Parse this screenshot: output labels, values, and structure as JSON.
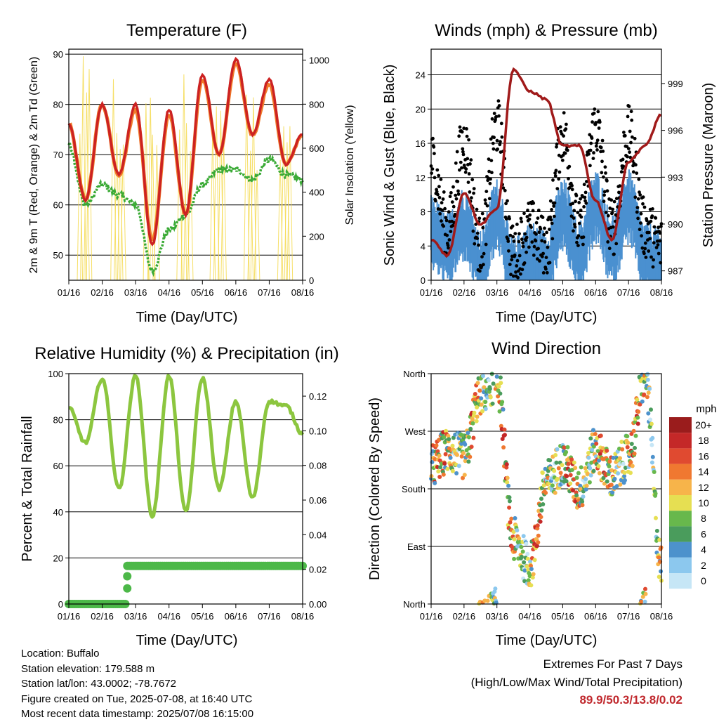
{
  "panels": {
    "temperature": {
      "title": "Temperature (F)",
      "ylabel_left": "2m & 9m T (Red, Orange) & 2m Td (Green)",
      "ylabel_right": "Solar Insolation (Yellow)",
      "xlabel": "Time (Day/UTC)"
    },
    "winds": {
      "title": "Winds (mph) & Pressure (mb)",
      "ylabel_left": "Sonic Wind & Gust (Blue, Black)",
      "ylabel_right": "Station Pressure (Maroon)",
      "xlabel": "Time (Day/UTC)"
    },
    "humidity": {
      "title": "Relative Humidity (%) & Precipitation (in)",
      "ylabel_left": "Percent & Total Rainfall",
      "xlabel": "Time (Day/UTC)"
    },
    "direction": {
      "title": "Wind Direction",
      "ylabel_left": "Direction (Colored By Speed)",
      "xlabel": "Time (Day/UTC)",
      "colorbar_title": "mph"
    }
  },
  "info": {
    "location": "Location: Buffalo",
    "elevation": "Station elevation: 179.588 m",
    "latlon": "Station lat/lon: 43.0002; -78.7672",
    "created": "Figure created on Tue, 2025-07-08, at 16:40 UTC",
    "recent": "Most recent data timestamp: 2025/07/08 16:15:00"
  },
  "extremes": {
    "heading": "Extremes For Past 7 Days",
    "subheading": "(High/Low/Max Wind/Total Precipitation)",
    "values": "89.9/50.3/13.8/0.02"
  },
  "chart_data": [
    {
      "type": "line",
      "title": "Temperature (F)",
      "xlabel": "Time (Day/UTC)",
      "ylabel": "2m & 9m T (Red, Orange) & 2m Td (Green)",
      "y2label": "Solar Insolation (Yellow)",
      "x_ticks": [
        "01/16",
        "02/16",
        "03/16",
        "04/16",
        "05/16",
        "06/16",
        "07/16",
        "08/16"
      ],
      "y_ticks": [
        50,
        60,
        70,
        80,
        90
      ],
      "y2_ticks": [
        0,
        200,
        400,
        600,
        800,
        1000
      ],
      "ylim": [
        45,
        91
      ],
      "y2lim": [
        0,
        1050
      ],
      "grid": true,
      "x": [
        0,
        0.5,
        1,
        1.5,
        2,
        2.5,
        3,
        3.5,
        4,
        4.5,
        5,
        5.5,
        6,
        6.5,
        7
      ],
      "series": [
        {
          "name": "2m T",
          "color": "#cc2222",
          "values": [
            76,
            61,
            80,
            66,
            80,
            52,
            79,
            58,
            86,
            70,
            89,
            74,
            85,
            68,
            74
          ]
        },
        {
          "name": "9m T",
          "color": "#f07a2a",
          "values": [
            76,
            61,
            80,
            66,
            79,
            53,
            78,
            58,
            85,
            70,
            88,
            74,
            84,
            68,
            74
          ]
        },
        {
          "name": "2m Td",
          "color": "#3aaa35",
          "values": [
            72,
            60,
            64,
            62,
            60,
            47,
            55,
            58,
            64,
            67,
            67,
            65,
            69,
            66,
            65
          ]
        },
        {
          "name": "Solar Insolation",
          "color": "#f5d94c",
          "values": [
            0,
            1020,
            0,
            1000,
            0,
            900,
            0,
            1000,
            0,
            1050,
            0,
            900,
            0,
            1000,
            0
          ]
        }
      ]
    },
    {
      "type": "line",
      "title": "Winds (mph) & Pressure (mb)",
      "xlabel": "Time (Day/UTC)",
      "ylabel": "Sonic Wind & Gust (Blue, Black)",
      "y2label": "Station Pressure (Maroon)",
      "x_ticks": [
        "01/16",
        "02/16",
        "03/16",
        "04/16",
        "05/16",
        "06/16",
        "07/16",
        "08/16"
      ],
      "y_ticks": [
        0,
        4,
        8,
        12,
        16,
        20,
        24
      ],
      "y2_ticks": [
        987,
        990,
        993,
        996,
        999
      ],
      "ylim": [
        0,
        27
      ],
      "y2lim": [
        986.4,
        1001.2
      ],
      "grid": true,
      "x": [
        0,
        0.5,
        1,
        1.5,
        2,
        2.5,
        3,
        3.5,
        4,
        4.5,
        5,
        5.5,
        6,
        6.5,
        7
      ],
      "series": [
        {
          "name": "Wind",
          "color": "#4a90d0",
          "values": [
            6,
            4,
            7,
            2,
            8,
            1,
            3,
            2,
            8,
            3,
            9,
            4,
            9,
            3,
            2
          ]
        },
        {
          "name": "Gust",
          "color": "#000000",
          "values": [
            14,
            6,
            16,
            4,
            18,
            3,
            6,
            4,
            17,
            6,
            18,
            6,
            17,
            6,
            4
          ]
        },
        {
          "name": "Pressure",
          "color": "#a01a1a",
          "values": [
            989,
            988,
            992,
            990,
            991,
            999.9,
            998.5,
            998,
            995,
            995,
            991.5,
            989,
            994,
            995,
            997
          ]
        }
      ]
    },
    {
      "type": "line",
      "title": "Relative Humidity (%) & Precipitation (in)",
      "xlabel": "Time (Day/UTC)",
      "ylabel": "Percent & Total Rainfall",
      "x_ticks": [
        "01/16",
        "02/16",
        "03/16",
        "04/16",
        "05/16",
        "06/16",
        "07/16",
        "08/16"
      ],
      "y_ticks": [
        0,
        20,
        40,
        60,
        80,
        100
      ],
      "y2_ticks": [
        "0.00",
        "0.02",
        "0.04",
        "0.06",
        "0.08",
        "0.10",
        "0.12"
      ],
      "ylim": [
        0,
        100
      ],
      "y2lim": [
        0,
        0.133
      ],
      "grid": true,
      "x": [
        0,
        0.5,
        1,
        1.5,
        2,
        2.5,
        3,
        3.5,
        4,
        4.5,
        5,
        5.5,
        6,
        6.5,
        7
      ],
      "series": [
        {
          "name": "Relative Humidity",
          "color": "#8cc63f",
          "values": [
            85,
            70,
            98,
            50,
            99,
            38,
            99,
            40,
            98,
            50,
            88,
            46,
            88,
            86,
            74
          ]
        },
        {
          "name": "Precipitation",
          "color": "#4cb848",
          "values": [
            0,
            0,
            0,
            0,
            0.02,
            0.02,
            0.02,
            0.02,
            0.02,
            0.02,
            0.02,
            0.02,
            0.02,
            0.02,
            0.02
          ]
        }
      ]
    },
    {
      "type": "scatter",
      "title": "Wind Direction",
      "xlabel": "Time (Day/UTC)",
      "ylabel": "Direction (Colored By Speed)",
      "x_ticks": [
        "01/16",
        "02/16",
        "03/16",
        "04/16",
        "05/16",
        "06/16",
        "07/16",
        "08/16"
      ],
      "y_ticks": [
        "North",
        "East",
        "South",
        "West",
        "North"
      ],
      "ylim": [
        0,
        360
      ],
      "grid": true,
      "colorbar": {
        "title": "mph",
        "labels": [
          "0",
          "2",
          "4",
          "6",
          "8",
          "10",
          "12",
          "14",
          "16",
          "18",
          "20+"
        ],
        "colors": [
          "#c6e6f6",
          "#8cc8ee",
          "#4d92cc",
          "#4a9c5c",
          "#68b84c",
          "#e6df52",
          "#f7b44a",
          "#f07830",
          "#e04a30",
          "#c42828",
          "#9a1c1c"
        ]
      },
      "x": [
        0,
        0.5,
        1,
        1.5,
        2,
        2.5,
        3,
        3.5,
        4,
        4.5,
        5,
        5.5,
        6,
        6.5,
        7
      ],
      "series": [
        {
          "name": "Direction",
          "values": [
            215,
            240,
            230,
            330,
            350,
            100,
            60,
            190,
            220,
            180,
            240,
            200,
            230,
            355,
            60
          ]
        }
      ]
    }
  ]
}
